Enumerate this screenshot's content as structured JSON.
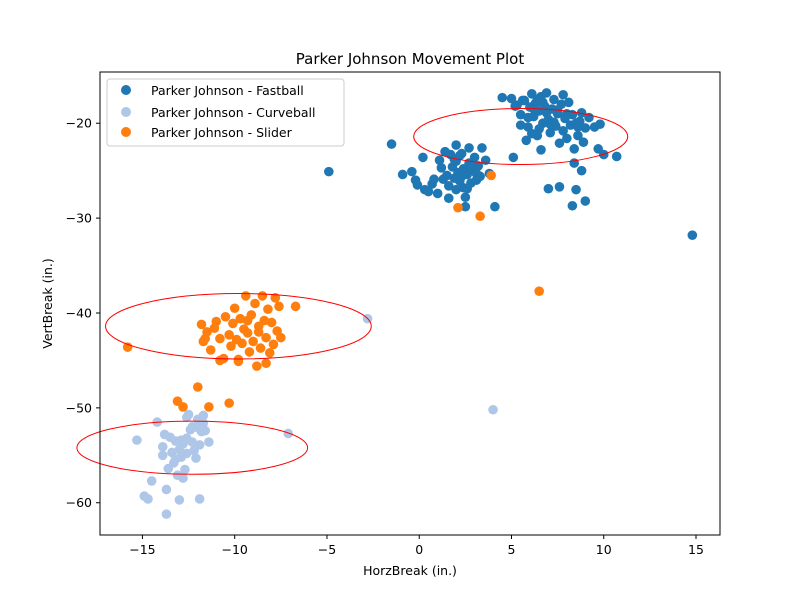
{
  "chart_data": {
    "type": "scatter",
    "title": "Parker Johnson Movement Plot",
    "xlabel": "HorzBreak (in.)",
    "ylabel": "VertBreak (in.)",
    "xlim": [
      -17.3,
      16.3
    ],
    "ylim": [
      -63.4,
      -14.6
    ],
    "xticks": [
      -15,
      -10,
      -5,
      0,
      5,
      10,
      15
    ],
    "yticks": [
      -60,
      -50,
      -40,
      -30,
      -20
    ],
    "grid": false,
    "legend_position": "top-left",
    "series": [
      {
        "name": "Parker Johnson - Fastball",
        "color": "#1f77b4",
        "points": [
          [
            -4.9,
            -25.1
          ],
          [
            -1.5,
            -22.2
          ],
          [
            -0.9,
            -25.4
          ],
          [
            -0.4,
            -25.1
          ],
          [
            -0.2,
            -26.0
          ],
          [
            -0.1,
            -26.5
          ],
          [
            0.2,
            -23.6
          ],
          [
            0.3,
            -27.0
          ],
          [
            0.5,
            -27.2
          ],
          [
            0.7,
            -26.4
          ],
          [
            1.0,
            -27.4
          ],
          [
            0.8,
            -25.9
          ],
          [
            1.2,
            -24.7
          ],
          [
            1.3,
            -25.9
          ],
          [
            1.4,
            -23.0
          ],
          [
            1.5,
            -25.5
          ],
          [
            1.6,
            -27.9
          ],
          [
            1.7,
            -23.3
          ],
          [
            1.8,
            -24.6
          ],
          [
            1.9,
            -25.8
          ],
          [
            2.0,
            -22.3
          ],
          [
            2.0,
            -24.0
          ],
          [
            2.1,
            -25.2
          ],
          [
            2.2,
            -26.1
          ],
          [
            2.3,
            -23.2
          ],
          [
            2.4,
            -24.8
          ],
          [
            2.4,
            -26.8
          ],
          [
            2.5,
            -27.8
          ],
          [
            2.5,
            -28.8
          ],
          [
            2.6,
            -25.4
          ],
          [
            2.7,
            -22.6
          ],
          [
            2.7,
            -24.2
          ],
          [
            2.8,
            -26.3
          ],
          [
            2.9,
            -25.0
          ],
          [
            3.0,
            -23.6
          ],
          [
            3.1,
            -26.0
          ],
          [
            3.2,
            -24.5
          ],
          [
            3.3,
            -25.6
          ],
          [
            3.4,
            -22.6
          ],
          [
            3.6,
            -23.9
          ],
          [
            3.8,
            -25.3
          ],
          [
            2.2,
            -23.4
          ],
          [
            1.6,
            -26.6
          ],
          [
            2.0,
            -27.0
          ],
          [
            2.6,
            -26.9
          ],
          [
            2.3,
            -25.6
          ],
          [
            1.9,
            -23.8
          ],
          [
            3.1,
            -25.3
          ],
          [
            1.1,
            -23.9
          ],
          [
            2.8,
            -24.4
          ],
          [
            4.1,
            -28.8
          ],
          [
            5.1,
            -23.6
          ],
          [
            5.0,
            -17.4
          ],
          [
            5.3,
            -18.1
          ],
          [
            5.5,
            -19.1
          ],
          [
            5.7,
            -17.6
          ],
          [
            5.9,
            -20.4
          ],
          [
            6.0,
            -18.3
          ],
          [
            6.1,
            -16.9
          ],
          [
            6.2,
            -19.3
          ],
          [
            6.3,
            -17.9
          ],
          [
            6.4,
            -21.3
          ],
          [
            6.5,
            -18.7
          ],
          [
            6.6,
            -17.2
          ],
          [
            6.7,
            -20.0
          ],
          [
            6.8,
            -18.2
          ],
          [
            6.9,
            -16.8
          ],
          [
            7.0,
            -19.6
          ],
          [
            7.1,
            -21.0
          ],
          [
            7.2,
            -18.5
          ],
          [
            7.3,
            -17.5
          ],
          [
            7.4,
            -20.3
          ],
          [
            7.5,
            -19.0
          ],
          [
            7.6,
            -22.1
          ],
          [
            7.7,
            -18.0
          ],
          [
            7.8,
            -20.8
          ],
          [
            7.9,
            -19.5
          ],
          [
            8.0,
            -21.6
          ],
          [
            8.1,
            -17.8
          ],
          [
            8.2,
            -20.2
          ],
          [
            8.3,
            -19.1
          ],
          [
            8.4,
            -22.7
          ],
          [
            8.5,
            -20.0
          ],
          [
            8.6,
            -21.3
          ],
          [
            8.7,
            -19.8
          ],
          [
            8.8,
            -18.9
          ],
          [
            8.9,
            -22.0
          ],
          [
            9.0,
            -20.5
          ],
          [
            9.2,
            -19.4
          ],
          [
            9.5,
            -20.4
          ],
          [
            9.8,
            -20.1
          ],
          [
            10.0,
            -23.3
          ],
          [
            10.7,
            -23.5
          ],
          [
            9.7,
            -22.7
          ],
          [
            9.0,
            -28.2
          ],
          [
            8.8,
            -25.0
          ],
          [
            8.5,
            -27.0
          ],
          [
            8.3,
            -28.7
          ],
          [
            8.4,
            -24.2
          ],
          [
            7.6,
            -26.7
          ],
          [
            7.0,
            -26.9
          ],
          [
            6.6,
            -22.8
          ],
          [
            5.8,
            -21.8
          ],
          [
            5.5,
            -20.2
          ],
          [
            5.2,
            -18.2
          ],
          [
            4.5,
            -17.3
          ],
          [
            6.2,
            -18.5
          ],
          [
            6.9,
            -18.9
          ],
          [
            7.3,
            -19.9
          ],
          [
            5.6,
            -17.6
          ],
          [
            6.4,
            -17.5
          ],
          [
            7.8,
            -17.0
          ],
          [
            8.6,
            -20.4
          ],
          [
            6.1,
            -21.1
          ],
          [
            7.1,
            -20.1
          ],
          [
            6.7,
            -17.8
          ],
          [
            5.9,
            -19.4
          ],
          [
            7.5,
            -18.6
          ],
          [
            6.5,
            -20.6
          ],
          [
            8.0,
            -19.0
          ],
          [
            14.8,
            -31.8
          ]
        ]
      },
      {
        "name": "Parker Johnson - Curveball",
        "color": "#aec7e8",
        "points": [
          [
            -15.3,
            -53.4
          ],
          [
            -14.9,
            -59.3
          ],
          [
            -14.7,
            -59.6
          ],
          [
            -14.5,
            -57.7
          ],
          [
            -14.2,
            -51.5
          ],
          [
            -13.9,
            -54.1
          ],
          [
            -13.8,
            -52.8
          ],
          [
            -13.7,
            -58.6
          ],
          [
            -13.7,
            -61.2
          ],
          [
            -13.6,
            -56.4
          ],
          [
            -13.5,
            -53.1
          ],
          [
            -13.4,
            -54.7
          ],
          [
            -13.3,
            -55.8
          ],
          [
            -13.2,
            -53.5
          ],
          [
            -13.1,
            -57.1
          ],
          [
            -13.0,
            -54.4
          ],
          [
            -13.0,
            -59.7
          ],
          [
            -12.9,
            -55.2
          ],
          [
            -12.8,
            -53.8
          ],
          [
            -12.8,
            -57.4
          ],
          [
            -12.7,
            -56.5
          ],
          [
            -12.6,
            -51.0
          ],
          [
            -12.6,
            -54.8
          ],
          [
            -12.5,
            -50.7
          ],
          [
            -12.4,
            -52.3
          ],
          [
            -12.3,
            -53.6
          ],
          [
            -12.2,
            -54.5
          ],
          [
            -12.1,
            -55.3
          ],
          [
            -12.0,
            -52.1
          ],
          [
            -12.0,
            -51.2
          ],
          [
            -11.9,
            -53.9
          ],
          [
            -11.8,
            -52.5
          ],
          [
            -11.7,
            -51.6
          ],
          [
            -11.7,
            -50.8
          ],
          [
            -11.6,
            -52.4
          ],
          [
            -11.4,
            -53.6
          ],
          [
            -11.9,
            -59.6
          ],
          [
            -12.6,
            -53.2
          ],
          [
            -13.2,
            -55.4
          ],
          [
            -13.9,
            -55.0
          ],
          [
            -12.3,
            -52.0
          ],
          [
            -12.9,
            -53.4
          ],
          [
            -7.1,
            -52.7
          ],
          [
            -2.8,
            -40.6
          ],
          [
            4.0,
            -50.2
          ]
        ]
      },
      {
        "name": "Parker Johnson - Slider",
        "color": "#ff7f0e",
        "points": [
          [
            -15.8,
            -43.6
          ],
          [
            -13.1,
            -49.3
          ],
          [
            -12.8,
            -49.9
          ],
          [
            -12.0,
            -47.8
          ],
          [
            -11.4,
            -49.9
          ],
          [
            -10.3,
            -49.5
          ],
          [
            -11.8,
            -41.2
          ],
          [
            -11.7,
            -43.0
          ],
          [
            -11.5,
            -42.0
          ],
          [
            -11.3,
            -43.9
          ],
          [
            -11.1,
            -41.6
          ],
          [
            -11.0,
            -40.9
          ],
          [
            -10.8,
            -42.7
          ],
          [
            -10.6,
            -44.8
          ],
          [
            -10.5,
            -40.4
          ],
          [
            -10.3,
            -42.3
          ],
          [
            -10.2,
            -43.5
          ],
          [
            -10.1,
            -41.1
          ],
          [
            -10.0,
            -39.5
          ],
          [
            -9.9,
            -42.8
          ],
          [
            -9.8,
            -44.9
          ],
          [
            -9.7,
            -40.6
          ],
          [
            -9.6,
            -43.2
          ],
          [
            -9.5,
            -41.7
          ],
          [
            -9.4,
            -38.2
          ],
          [
            -9.3,
            -42.1
          ],
          [
            -9.2,
            -44.1
          ],
          [
            -9.1,
            -40.2
          ],
          [
            -9.0,
            -43.0
          ],
          [
            -8.9,
            -39.0
          ],
          [
            -8.8,
            -45.6
          ],
          [
            -8.7,
            -41.4
          ],
          [
            -8.6,
            -43.7
          ],
          [
            -8.5,
            -38.2
          ],
          [
            -8.4,
            -40.8
          ],
          [
            -8.3,
            -42.6
          ],
          [
            -8.2,
            -39.6
          ],
          [
            -8.1,
            -44.2
          ],
          [
            -8.0,
            -41.0
          ],
          [
            -7.9,
            -43.3
          ],
          [
            -7.8,
            -38.4
          ],
          [
            -7.7,
            -41.9
          ],
          [
            -7.6,
            -39.3
          ],
          [
            -7.5,
            -42.6
          ],
          [
            -8.3,
            -45.3
          ],
          [
            -9.8,
            -45.1
          ],
          [
            -10.8,
            -45.0
          ],
          [
            -11.6,
            -42.7
          ],
          [
            -9.3,
            -40.8
          ],
          [
            -8.7,
            -42.0
          ],
          [
            -6.7,
            -39.3
          ],
          [
            2.1,
            -28.9
          ],
          [
            3.3,
            -29.8
          ],
          [
            3.9,
            -25.5
          ],
          [
            6.5,
            -37.7
          ]
        ]
      }
    ],
    "ellipses": [
      {
        "center": [
          5.5,
          -21.4
        ],
        "width": 11.6,
        "height": 5.9,
        "color": "#ff0000"
      },
      {
        "center": [
          -9.8,
          -41.4
        ],
        "width": 14.4,
        "height": 6.9,
        "color": "#ff0000"
      },
      {
        "center": [
          -12.3,
          -54.2
        ],
        "width": 12.5,
        "height": 5.6,
        "color": "#ff0000"
      }
    ]
  }
}
